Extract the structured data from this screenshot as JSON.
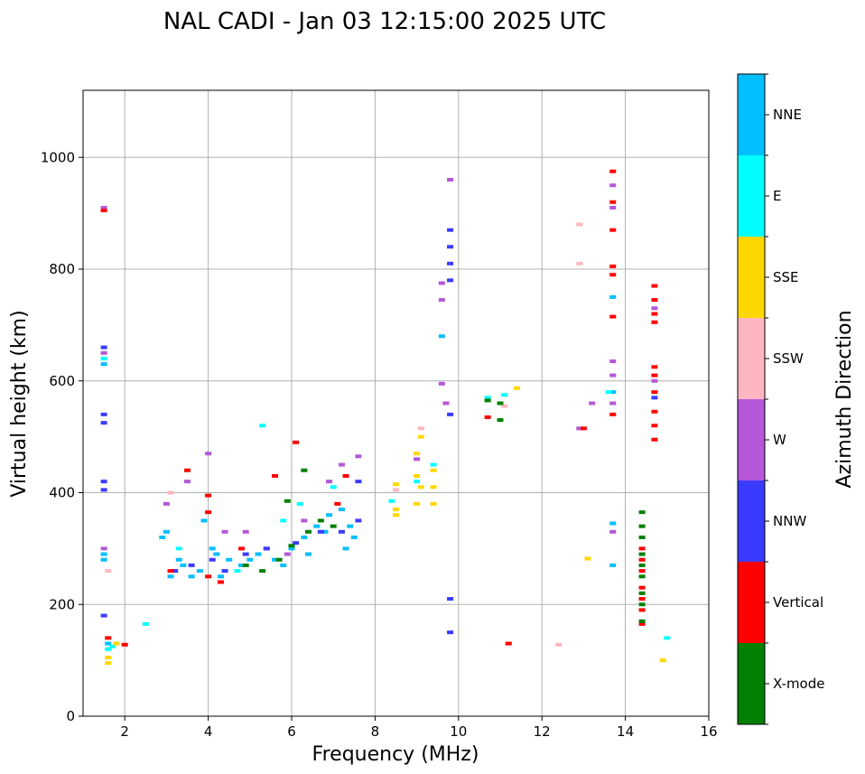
{
  "chart_data": {
    "type": "scatter",
    "title": "NAL CADI - Jan 03 12:15:00 2025 UTC",
    "xlabel": "Frequency (MHz)",
    "ylabel": "Virtual height (km)",
    "xlim": [
      1,
      16
    ],
    "ylim": [
      0,
      1120
    ],
    "xticks": [
      2,
      4,
      6,
      8,
      10,
      12,
      14,
      16
    ],
    "yticks": [
      0,
      200,
      400,
      600,
      800,
      1000
    ],
    "grid": true,
    "colorbar": {
      "label": "Azimuth Direction",
      "categories": [
        {
          "name": "X-mode",
          "color": "#008000"
        },
        {
          "name": "Vertical",
          "color": "#ff0000"
        },
        {
          "name": "NNW",
          "color": "#3b3bff"
        },
        {
          "name": "W",
          "color": "#b557d8"
        },
        {
          "name": "SSW",
          "color": "#ffb6c1"
        },
        {
          "name": "SSE",
          "color": "#ffd700"
        },
        {
          "name": "E",
          "color": "#00ffff"
        },
        {
          "name": "NNE",
          "color": "#00bfff"
        }
      ]
    },
    "series": [
      {
        "name": "NNE",
        "points": [
          [
            1.5,
            290
          ],
          [
            1.5,
            280
          ],
          [
            1.5,
            630
          ],
          [
            1.6,
            130
          ],
          [
            3.1,
            250
          ],
          [
            3.2,
            260
          ],
          [
            3.3,
            280
          ],
          [
            3.4,
            270
          ],
          [
            3.6,
            250
          ],
          [
            3.8,
            260
          ],
          [
            3.9,
            350
          ],
          [
            4.1,
            300
          ],
          [
            4.3,
            250
          ],
          [
            4.5,
            280
          ],
          [
            4.8,
            270
          ],
          [
            5.2,
            290
          ],
          [
            5.6,
            280
          ],
          [
            6.0,
            300
          ],
          [
            6.3,
            320
          ],
          [
            6.6,
            340
          ],
          [
            6.9,
            360
          ],
          [
            7.2,
            370
          ],
          [
            7.4,
            340
          ],
          [
            7.5,
            320
          ],
          [
            7.3,
            300
          ],
          [
            6.8,
            330
          ],
          [
            6.4,
            290
          ],
          [
            5.8,
            270
          ],
          [
            5.0,
            280
          ],
          [
            4.2,
            290
          ],
          [
            3.0,
            330
          ],
          [
            2.9,
            320
          ],
          [
            13.7,
            270
          ],
          [
            13.7,
            345
          ],
          [
            13.7,
            580
          ],
          [
            13.7,
            750
          ],
          [
            9.6,
            680
          ]
        ]
      },
      {
        "name": "E",
        "points": [
          [
            1.5,
            640
          ],
          [
            1.6,
            120
          ],
          [
            1.7,
            125
          ],
          [
            2.5,
            165
          ],
          [
            3.3,
            300
          ],
          [
            4.7,
            260
          ],
          [
            5.3,
            520
          ],
          [
            5.8,
            350
          ],
          [
            6.2,
            380
          ],
          [
            7.0,
            410
          ],
          [
            8.4,
            385
          ],
          [
            9.0,
            420
          ],
          [
            9.4,
            450
          ],
          [
            10.7,
            570
          ],
          [
            11.1,
            575
          ],
          [
            15.0,
            140
          ],
          [
            13.6,
            580
          ]
        ]
      },
      {
        "name": "SSE",
        "points": [
          [
            1.6,
            95
          ],
          [
            1.6,
            105
          ],
          [
            1.8,
            130
          ],
          [
            8.5,
            360
          ],
          [
            8.5,
            370
          ],
          [
            8.5,
            415
          ],
          [
            9.0,
            380
          ],
          [
            9.0,
            430
          ],
          [
            9.0,
            470
          ],
          [
            9.1,
            410
          ],
          [
            9.1,
            500
          ],
          [
            9.4,
            380
          ],
          [
            9.4,
            410
          ],
          [
            9.4,
            440
          ],
          [
            13.1,
            282
          ],
          [
            14.9,
            100
          ],
          [
            11.4,
            587
          ]
        ]
      },
      {
        "name": "SSW",
        "points": [
          [
            1.6,
            260
          ],
          [
            3.1,
            400
          ],
          [
            8.5,
            405
          ],
          [
            9.1,
            515
          ],
          [
            12.4,
            128
          ],
          [
            12.9,
            810
          ],
          [
            12.9,
            880
          ],
          [
            11.1,
            555
          ]
        ]
      },
      {
        "name": "W",
        "points": [
          [
            1.5,
            300
          ],
          [
            1.5,
            650
          ],
          [
            1.5,
            910
          ],
          [
            3.0,
            380
          ],
          [
            3.5,
            420
          ],
          [
            4.0,
            470
          ],
          [
            4.4,
            330
          ],
          [
            4.9,
            330
          ],
          [
            5.4,
            300
          ],
          [
            5.9,
            290
          ],
          [
            6.3,
            350
          ],
          [
            6.9,
            420
          ],
          [
            7.2,
            450
          ],
          [
            7.6,
            465
          ],
          [
            9.0,
            460
          ],
          [
            9.7,
            560
          ],
          [
            9.6,
            595
          ],
          [
            9.6,
            745
          ],
          [
            9.6,
            775
          ],
          [
            9.8,
            960
          ],
          [
            13.2,
            560
          ],
          [
            13.7,
            330
          ],
          [
            13.7,
            560
          ],
          [
            13.7,
            610
          ],
          [
            13.7,
            635
          ],
          [
            13.7,
            910
          ],
          [
            13.7,
            950
          ],
          [
            14.7,
            600
          ],
          [
            14.7,
            730
          ],
          [
            12.9,
            515
          ]
        ]
      },
      {
        "name": "NNW",
        "points": [
          [
            1.5,
            180
          ],
          [
            1.5,
            405
          ],
          [
            1.5,
            420
          ],
          [
            1.5,
            525
          ],
          [
            1.5,
            540
          ],
          [
            1.5,
            660
          ],
          [
            3.2,
            260
          ],
          [
            3.6,
            270
          ],
          [
            4.1,
            280
          ],
          [
            4.4,
            260
          ],
          [
            4.9,
            290
          ],
          [
            5.4,
            300
          ],
          [
            6.1,
            310
          ],
          [
            6.7,
            330
          ],
          [
            7.2,
            330
          ],
          [
            7.6,
            350
          ],
          [
            7.6,
            420
          ],
          [
            9.8,
            150
          ],
          [
            9.8,
            210
          ],
          [
            9.8,
            540
          ],
          [
            9.8,
            780
          ],
          [
            9.8,
            810
          ],
          [
            9.8,
            840
          ],
          [
            9.8,
            870
          ],
          [
            14.7,
            570
          ]
        ]
      },
      {
        "name": "Vertical",
        "points": [
          [
            1.5,
            905
          ],
          [
            1.6,
            140
          ],
          [
            2.0,
            128
          ],
          [
            3.1,
            260
          ],
          [
            3.5,
            440
          ],
          [
            4.0,
            250
          ],
          [
            4.0,
            365
          ],
          [
            4.0,
            395
          ],
          [
            4.3,
            240
          ],
          [
            4.8,
            300
          ],
          [
            5.6,
            430
          ],
          [
            6.1,
            490
          ],
          [
            7.1,
            380
          ],
          [
            7.3,
            430
          ],
          [
            10.7,
            535
          ],
          [
            11.2,
            130
          ],
          [
            13.0,
            515
          ],
          [
            13.7,
            540
          ],
          [
            13.7,
            715
          ],
          [
            13.7,
            790
          ],
          [
            13.7,
            805
          ],
          [
            13.7,
            870
          ],
          [
            13.7,
            920
          ],
          [
            13.7,
            975
          ],
          [
            14.7,
            495
          ],
          [
            14.7,
            520
          ],
          [
            14.7,
            545
          ],
          [
            14.7,
            580
          ],
          [
            14.7,
            610
          ],
          [
            14.7,
            625
          ],
          [
            14.7,
            705
          ],
          [
            14.7,
            720
          ],
          [
            14.7,
            745
          ],
          [
            14.7,
            770
          ],
          [
            14.4,
            165
          ],
          [
            14.4,
            190
          ],
          [
            14.4,
            210
          ],
          [
            14.4,
            230
          ],
          [
            14.4,
            260
          ],
          [
            14.4,
            280
          ],
          [
            14.4,
            300
          ]
        ]
      },
      {
        "name": "X-mode",
        "points": [
          [
            4.9,
            270
          ],
          [
            5.3,
            260
          ],
          [
            5.7,
            280
          ],
          [
            6.0,
            305
          ],
          [
            6.4,
            330
          ],
          [
            6.7,
            350
          ],
          [
            7.0,
            340
          ],
          [
            6.3,
            440
          ],
          [
            5.9,
            385
          ],
          [
            11.0,
            530
          ],
          [
            11.0,
            560
          ],
          [
            10.7,
            565
          ],
          [
            14.4,
            170
          ],
          [
            14.4,
            200
          ],
          [
            14.4,
            220
          ],
          [
            14.4,
            250
          ],
          [
            14.4,
            270
          ],
          [
            14.4,
            290
          ],
          [
            14.4,
            320
          ],
          [
            14.4,
            340
          ],
          [
            14.4,
            365
          ]
        ]
      }
    ]
  }
}
